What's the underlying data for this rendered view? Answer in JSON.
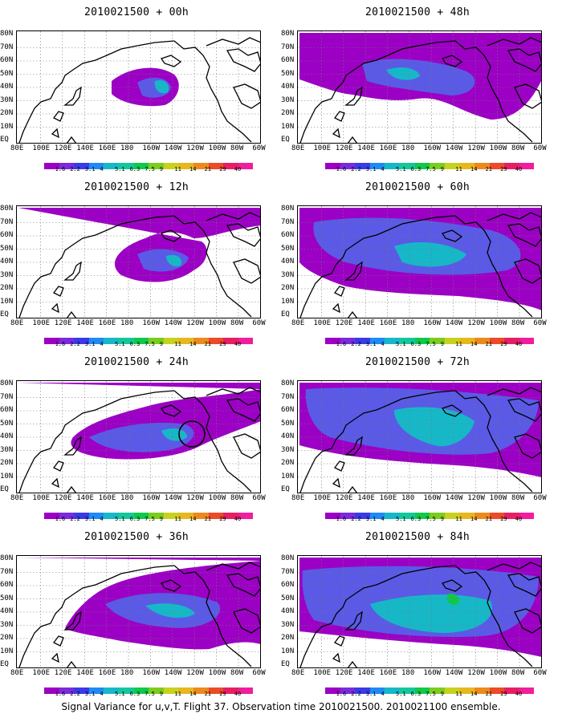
{
  "panels": [
    {
      "title": "2010021500 + 00h"
    },
    {
      "title": "2010021500 + 48h"
    },
    {
      "title": "2010021500 + 12h"
    },
    {
      "title": "2010021500 + 60h"
    },
    {
      "title": "2010021500 + 24h"
    },
    {
      "title": "2010021500 + 72h"
    },
    {
      "title": "2010021500 + 36h"
    },
    {
      "title": "2010021500 + 84h"
    }
  ],
  "lat_labels": [
    "80N",
    "70N",
    "60N",
    "50N",
    "40N",
    "30N",
    "20N",
    "10N",
    "EQ"
  ],
  "lon_labels": [
    "80E",
    "100E",
    "120E",
    "140E",
    "160E",
    "180",
    "160W",
    "140W",
    "120W",
    "100W",
    "80W",
    "60W"
  ],
  "colorbar": {
    "labels": [
      "1.6",
      "2.2",
      "3.1",
      "4",
      "5.1",
      "6.3",
      "7.5",
      "9",
      "11",
      "14",
      "21",
      "29",
      "40"
    ],
    "colors": [
      "#9c00c4",
      "#7b2bdc",
      "#3a3ae8",
      "#1e8bf5",
      "#16b8c8",
      "#12c89a",
      "#10c84a",
      "#7ccc1e",
      "#c8d21e",
      "#e6b81e",
      "#ec8a1e",
      "#ec4a28",
      "#e81e64",
      "#f01e9c"
    ]
  },
  "colors": {
    "field_low": "#9c00c4",
    "field_mid": "#5a5ae6",
    "field_high": "#16b8c8",
    "field_peak": "#10c84a"
  },
  "caption": "Signal Variance for u,v,T. Flight 37. Observation time 2010021500. 2010021100 ensemble."
}
